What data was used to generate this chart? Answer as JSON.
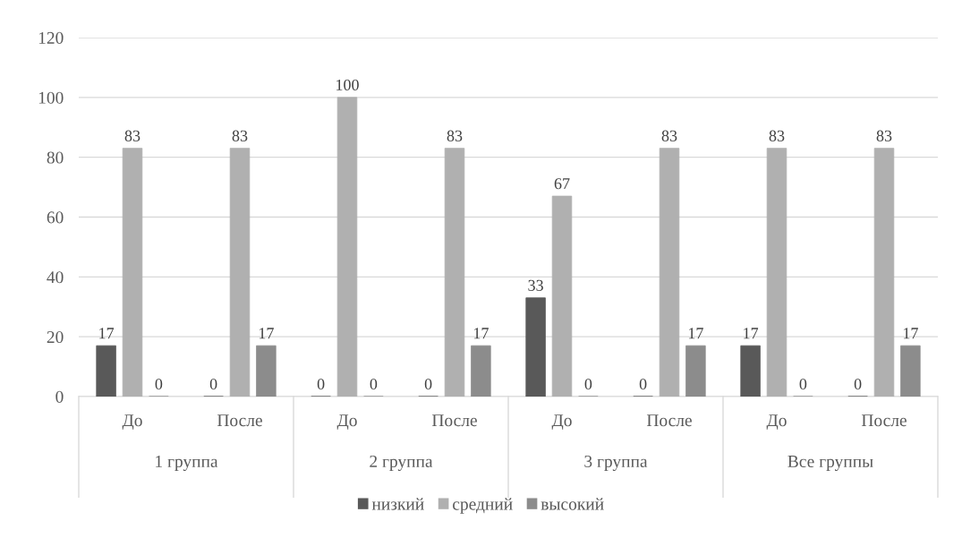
{
  "chart_data": {
    "type": "bar",
    "categories": [
      "До",
      "После",
      "До",
      "После",
      "До",
      "После",
      "До",
      "После"
    ],
    "annotations": [
      "1 группа",
      "2 группа",
      "3 группа",
      "Все группы"
    ],
    "series": [
      {
        "name": "низкий",
        "color": "#595959",
        "values": [
          17,
          0,
          0,
          0,
          33,
          0,
          17,
          0
        ]
      },
      {
        "name": "средний",
        "color": "#b0b0b0",
        "values": [
          83,
          83,
          100,
          83,
          67,
          83,
          83,
          83
        ]
      },
      {
        "name": "высокий",
        "color": "#8c8c8c",
        "values": [
          0,
          17,
          0,
          17,
          0,
          17,
          0,
          17
        ]
      }
    ],
    "ylim": [
      0,
      120
    ],
    "yticks": [
      0,
      20,
      40,
      60,
      80,
      100,
      120
    ],
    "grid": "y",
    "legend": "bottom",
    "data_labels": true
  }
}
